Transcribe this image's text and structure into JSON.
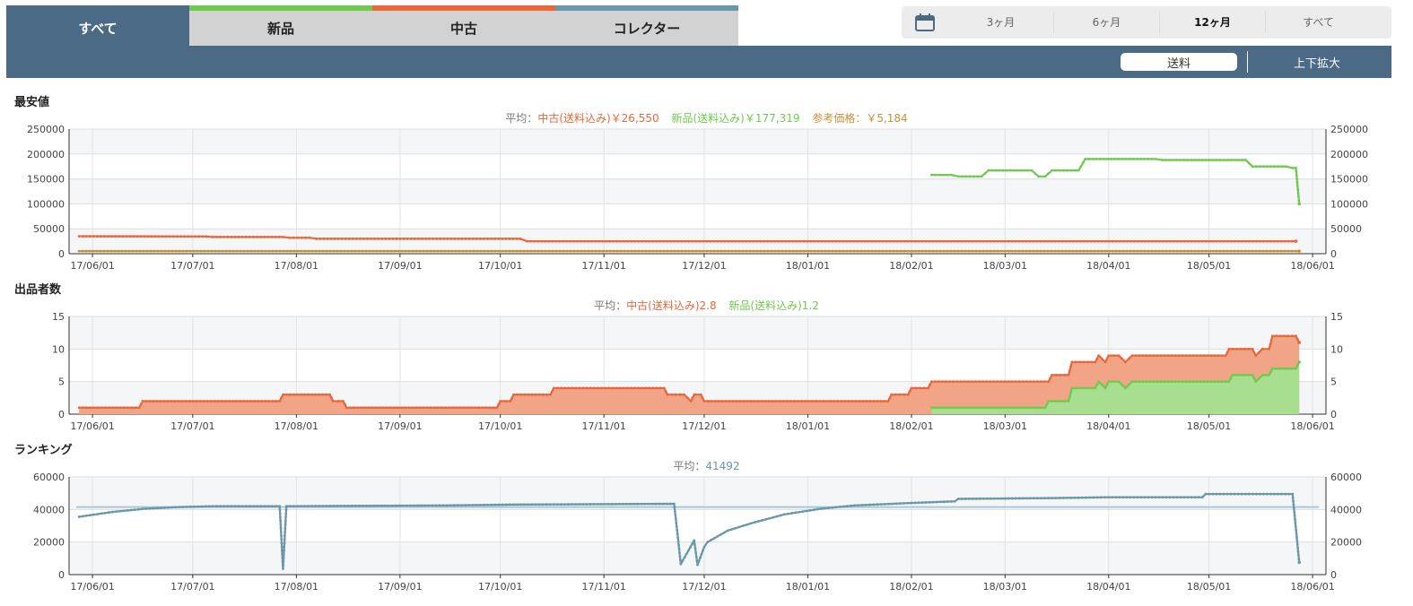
{
  "tabs": [
    {
      "label": "すべて",
      "active": true
    },
    {
      "label": "新品"
    },
    {
      "label": "中古"
    },
    {
      "label": "コレクター"
    }
  ],
  "range": {
    "icon": "calendar-icon",
    "options": [
      "3ヶ月",
      "6ヶ月",
      "12ヶ月",
      "すべて"
    ],
    "selected": "12ヶ月"
  },
  "toolbar": {
    "shipping_label": "送料",
    "zoom_label": "上下拡大"
  },
  "colors": {
    "used": "#e8683c",
    "new": "#6fca4f",
    "reference": "#c9903a",
    "ranking": "#6a98aa",
    "header": "#4a6a85"
  },
  "x_ticks": [
    "17/06/01",
    "17/07/01",
    "17/08/01",
    "17/09/01",
    "17/10/01",
    "17/11/01",
    "17/12/01",
    "18/01/01",
    "18/02/01",
    "18/03/01",
    "18/04/01",
    "18/05/01",
    "18/06/01"
  ],
  "chart_data": [
    {
      "type": "line",
      "title": "最安値",
      "summary": {
        "prefix": "平均：",
        "used": "中古(送料込み)￥26,550",
        "new": "新品(送料込み)￥177,319",
        "reference": "参考価格：￥5,184"
      },
      "ylim": [
        0,
        250000
      ],
      "y_ticks": [
        0,
        50000,
        100000,
        150000,
        200000,
        250000
      ],
      "series": [
        {
          "name": "中古(送料込み)",
          "color": "#e8683c",
          "points": [
            [
              "2017-05-28",
              35000
            ],
            [
              "2017-07-05",
              34500
            ],
            [
              "2017-07-07",
              33500
            ],
            [
              "2017-07-28",
              33500
            ],
            [
              "2017-07-30",
              32000
            ],
            [
              "2017-08-05",
              32000
            ],
            [
              "2017-08-07",
              30000
            ],
            [
              "2017-10-07",
              30000
            ],
            [
              "2017-10-09",
              25000
            ],
            [
              "2018-05-27",
              25000
            ]
          ]
        },
        {
          "name": "新品(送料込み)",
          "color": "#6fca4f",
          "points": [
            [
              "2018-02-07",
              158000
            ],
            [
              "2018-02-13",
              158000
            ],
            [
              "2018-02-15",
              155000
            ],
            [
              "2018-02-22",
              155000
            ],
            [
              "2018-02-24",
              167000
            ],
            [
              "2018-03-09",
              167000
            ],
            [
              "2018-03-11",
              155000
            ],
            [
              "2018-03-13",
              155000
            ],
            [
              "2018-03-15",
              167000
            ],
            [
              "2018-03-23",
              167000
            ],
            [
              "2018-03-25",
              190000
            ],
            [
              "2018-04-15",
              190000
            ],
            [
              "2018-04-17",
              188000
            ],
            [
              "2018-05-12",
              188000
            ],
            [
              "2018-05-14",
              175000
            ],
            [
              "2018-05-24",
              175000
            ],
            [
              "2018-05-26",
              172000
            ],
            [
              "2018-05-27",
              172000
            ],
            [
              "2018-05-28",
              100000
            ]
          ]
        },
        {
          "name": "参考価格",
          "color": "#c9903a",
          "points": [
            [
              "2017-05-28",
              5184
            ],
            [
              "2018-05-28",
              5184
            ]
          ]
        }
      ]
    },
    {
      "type": "area",
      "title": "出品者数",
      "summary": {
        "prefix": "平均：",
        "used": "中古(送料込み)2.8",
        "new": "新品(送料込み)1.2"
      },
      "ylim": [
        0,
        15
      ],
      "y_ticks": [
        0,
        5,
        10,
        15
      ],
      "series": [
        {
          "name": "中古(送料込み)",
          "color": "#e8683c",
          "points": [
            [
              "2017-05-28",
              1
            ],
            [
              "2017-06-15",
              1
            ],
            [
              "2017-06-16",
              2
            ],
            [
              "2017-07-27",
              2
            ],
            [
              "2017-07-28",
              3
            ],
            [
              "2017-08-11",
              3
            ],
            [
              "2017-08-12",
              2
            ],
            [
              "2017-08-15",
              2
            ],
            [
              "2017-08-16",
              1
            ],
            [
              "2017-09-30",
              1
            ],
            [
              "2017-10-01",
              2
            ],
            [
              "2017-10-04",
              2
            ],
            [
              "2017-10-05",
              3
            ],
            [
              "2017-10-16",
              3
            ],
            [
              "2017-10-17",
              4
            ],
            [
              "2017-11-19",
              4
            ],
            [
              "2017-11-20",
              3
            ],
            [
              "2017-11-25",
              3
            ],
            [
              "2017-11-27",
              2
            ],
            [
              "2017-11-28",
              3
            ],
            [
              "2017-11-30",
              3
            ],
            [
              "2017-12-01",
              2
            ],
            [
              "2018-01-25",
              2
            ],
            [
              "2018-01-26",
              3
            ],
            [
              "2018-01-31",
              3
            ],
            [
              "2018-02-01",
              4
            ],
            [
              "2018-02-06",
              4
            ],
            [
              "2018-02-07",
              5
            ],
            [
              "2018-03-14",
              5
            ],
            [
              "2018-03-15",
              6
            ],
            [
              "2018-03-20",
              6
            ],
            [
              "2018-03-21",
              8
            ],
            [
              "2018-03-28",
              8
            ],
            [
              "2018-03-29",
              9
            ],
            [
              "2018-03-31",
              8
            ],
            [
              "2018-04-01",
              9
            ],
            [
              "2018-04-04",
              9
            ],
            [
              "2018-04-06",
              8
            ],
            [
              "2018-04-08",
              9
            ],
            [
              "2018-05-06",
              9
            ],
            [
              "2018-05-07",
              10
            ],
            [
              "2018-05-14",
              10
            ],
            [
              "2018-05-15",
              9
            ],
            [
              "2018-05-17",
              10
            ],
            [
              "2018-05-19",
              10
            ],
            [
              "2018-05-20",
              12
            ],
            [
              "2018-05-27",
              12
            ],
            [
              "2018-05-28",
              11
            ]
          ]
        },
        {
          "name": "新品(送料込み)",
          "color": "#6fca4f",
          "points": [
            [
              "2018-02-07",
              1
            ],
            [
              "2018-03-13",
              1
            ],
            [
              "2018-03-14",
              2
            ],
            [
              "2018-03-20",
              2
            ],
            [
              "2018-03-21",
              4
            ],
            [
              "2018-03-28",
              4
            ],
            [
              "2018-03-29",
              5
            ],
            [
              "2018-03-31",
              4
            ],
            [
              "2018-04-01",
              5
            ],
            [
              "2018-04-04",
              5
            ],
            [
              "2018-04-06",
              4
            ],
            [
              "2018-04-08",
              5
            ],
            [
              "2018-05-07",
              5
            ],
            [
              "2018-05-08",
              6
            ],
            [
              "2018-05-14",
              6
            ],
            [
              "2018-05-15",
              5
            ],
            [
              "2018-05-17",
              6
            ],
            [
              "2018-05-19",
              6
            ],
            [
              "2018-05-20",
              7
            ],
            [
              "2018-05-27",
              7
            ],
            [
              "2018-05-28",
              8
            ]
          ]
        }
      ]
    },
    {
      "type": "line",
      "title": "ランキング",
      "summary": {
        "prefix": "平均：",
        "avg": "41492"
      },
      "average": 41492,
      "ylim": [
        0,
        60000
      ],
      "y_ticks": [
        0,
        20000,
        40000,
        60000
      ],
      "series": [
        {
          "name": "ランキング",
          "color": "#6a98aa",
          "points": [
            [
              "2017-05-28",
              35500
            ],
            [
              "2017-06-07",
              38500
            ],
            [
              "2017-06-17",
              40500
            ],
            [
              "2017-06-27",
              41500
            ],
            [
              "2017-07-07",
              42000
            ],
            [
              "2017-07-27",
              42000
            ],
            [
              "2017-07-28",
              3500
            ],
            [
              "2017-07-29",
              42000
            ],
            [
              "2017-09-15",
              42500
            ],
            [
              "2017-10-05",
              43000
            ],
            [
              "2017-11-22",
              43500
            ],
            [
              "2017-11-24",
              6500
            ],
            [
              "2017-11-28",
              21000
            ],
            [
              "2017-11-29",
              6000
            ],
            [
              "2017-12-01",
              17000
            ],
            [
              "2017-12-02",
              20000
            ],
            [
              "2017-12-08",
              27000
            ],
            [
              "2017-12-15",
              31500
            ],
            [
              "2017-12-25",
              37000
            ],
            [
              "2018-01-05",
              40500
            ],
            [
              "2018-01-15",
              42500
            ],
            [
              "2018-02-01",
              44000
            ],
            [
              "2018-02-14",
              45000
            ],
            [
              "2018-02-15",
              46500
            ],
            [
              "2018-03-15",
              47000
            ],
            [
              "2018-04-01",
              47500
            ],
            [
              "2018-04-29",
              47500
            ],
            [
              "2018-04-30",
              49500
            ],
            [
              "2018-05-26",
              49500
            ],
            [
              "2018-05-28",
              7500
            ]
          ]
        }
      ]
    }
  ]
}
